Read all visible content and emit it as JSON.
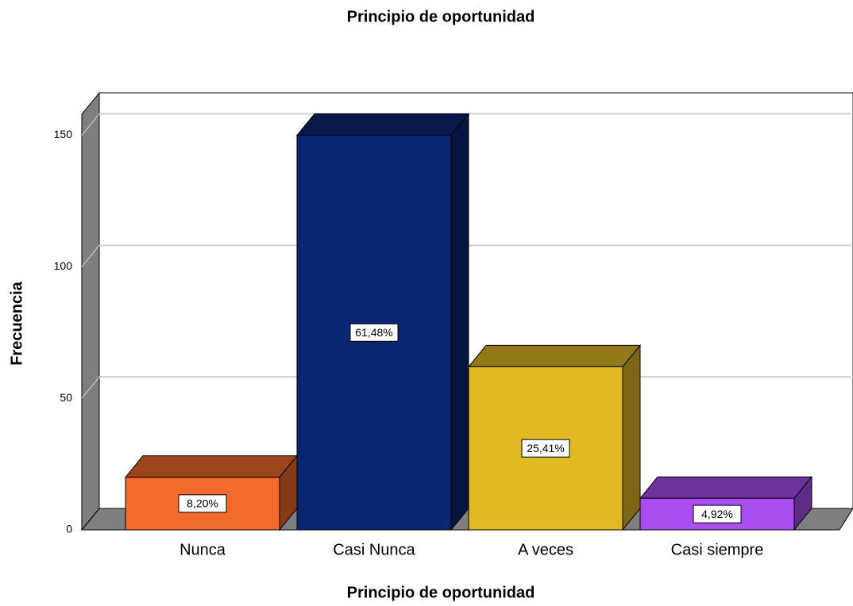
{
  "chart_data": {
    "type": "bar3d",
    "title": "Principio de oportunidad",
    "xlabel": "Principio de oportunidad",
    "ylabel": "Frecuencia",
    "categories": [
      "Nunca",
      "Casi Nunca",
      "A veces",
      "Casi siempre"
    ],
    "values": [
      20,
      150,
      62,
      12
    ],
    "percentages": [
      8.2,
      61.48,
      25.41,
      4.92
    ],
    "percentage_labels": [
      "8,20%",
      "61,48%",
      "25,41%",
      "4,92%"
    ],
    "colors": [
      "#f26b2c",
      "#0a2672",
      "#e1b922",
      "#a94ef0"
    ],
    "ylim": [
      0,
      158
    ],
    "yticks": [
      0,
      50,
      100,
      150
    ],
    "grid": true
  }
}
